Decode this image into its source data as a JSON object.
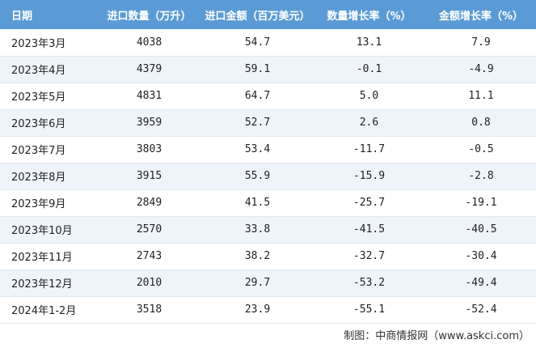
{
  "table": {
    "headers": {
      "date": "日期",
      "quantity": "进口数量（万升）",
      "amount": "进口金额（百万美元）",
      "quantity_growth": "数量增长率（%）",
      "amount_growth": "金额增长率（%）"
    },
    "rows": [
      {
        "date": "2023年3月",
        "quantity": "4038",
        "amount": "54.7",
        "quantity_growth": "13.1",
        "amount_growth": "7.9"
      },
      {
        "date": "2023年4月",
        "quantity": "4379",
        "amount": "59.1",
        "quantity_growth": "-0.1",
        "amount_growth": "-4.9"
      },
      {
        "date": "2023年5月",
        "quantity": "4831",
        "amount": "64.7",
        "quantity_growth": "5.0",
        "amount_growth": "11.1"
      },
      {
        "date": "2023年6月",
        "quantity": "3959",
        "amount": "52.7",
        "quantity_growth": "2.6",
        "amount_growth": "0.8"
      },
      {
        "date": "2023年7月",
        "quantity": "3803",
        "amount": "53.4",
        "quantity_growth": "-11.7",
        "amount_growth": "-0.5"
      },
      {
        "date": "2023年8月",
        "quantity": "3915",
        "amount": "55.9",
        "quantity_growth": "-15.9",
        "amount_growth": "-2.8"
      },
      {
        "date": "2023年9月",
        "quantity": "2849",
        "amount": "41.5",
        "quantity_growth": "-25.7",
        "amount_growth": "-19.1"
      },
      {
        "date": "2023年10月",
        "quantity": "2570",
        "amount": "33.8",
        "quantity_growth": "-41.5",
        "amount_growth": "-40.5"
      },
      {
        "date": "2023年11月",
        "quantity": "2743",
        "amount": "38.2",
        "quantity_growth": "-32.7",
        "amount_growth": "-30.4"
      },
      {
        "date": "2023年12月",
        "quantity": "2010",
        "amount": "29.7",
        "quantity_growth": "-53.2",
        "amount_growth": "-49.4"
      },
      {
        "date": "2024年1-2月",
        "quantity": "3518",
        "amount": "23.9",
        "quantity_growth": "-55.1",
        "amount_growth": "-52.4"
      }
    ]
  },
  "source": "制图：中商情报网（www.askci.com）",
  "colors": {
    "header_bg": "#5b9bd5",
    "header_text": "#ffffff",
    "stripe": "#eef4fa"
  }
}
